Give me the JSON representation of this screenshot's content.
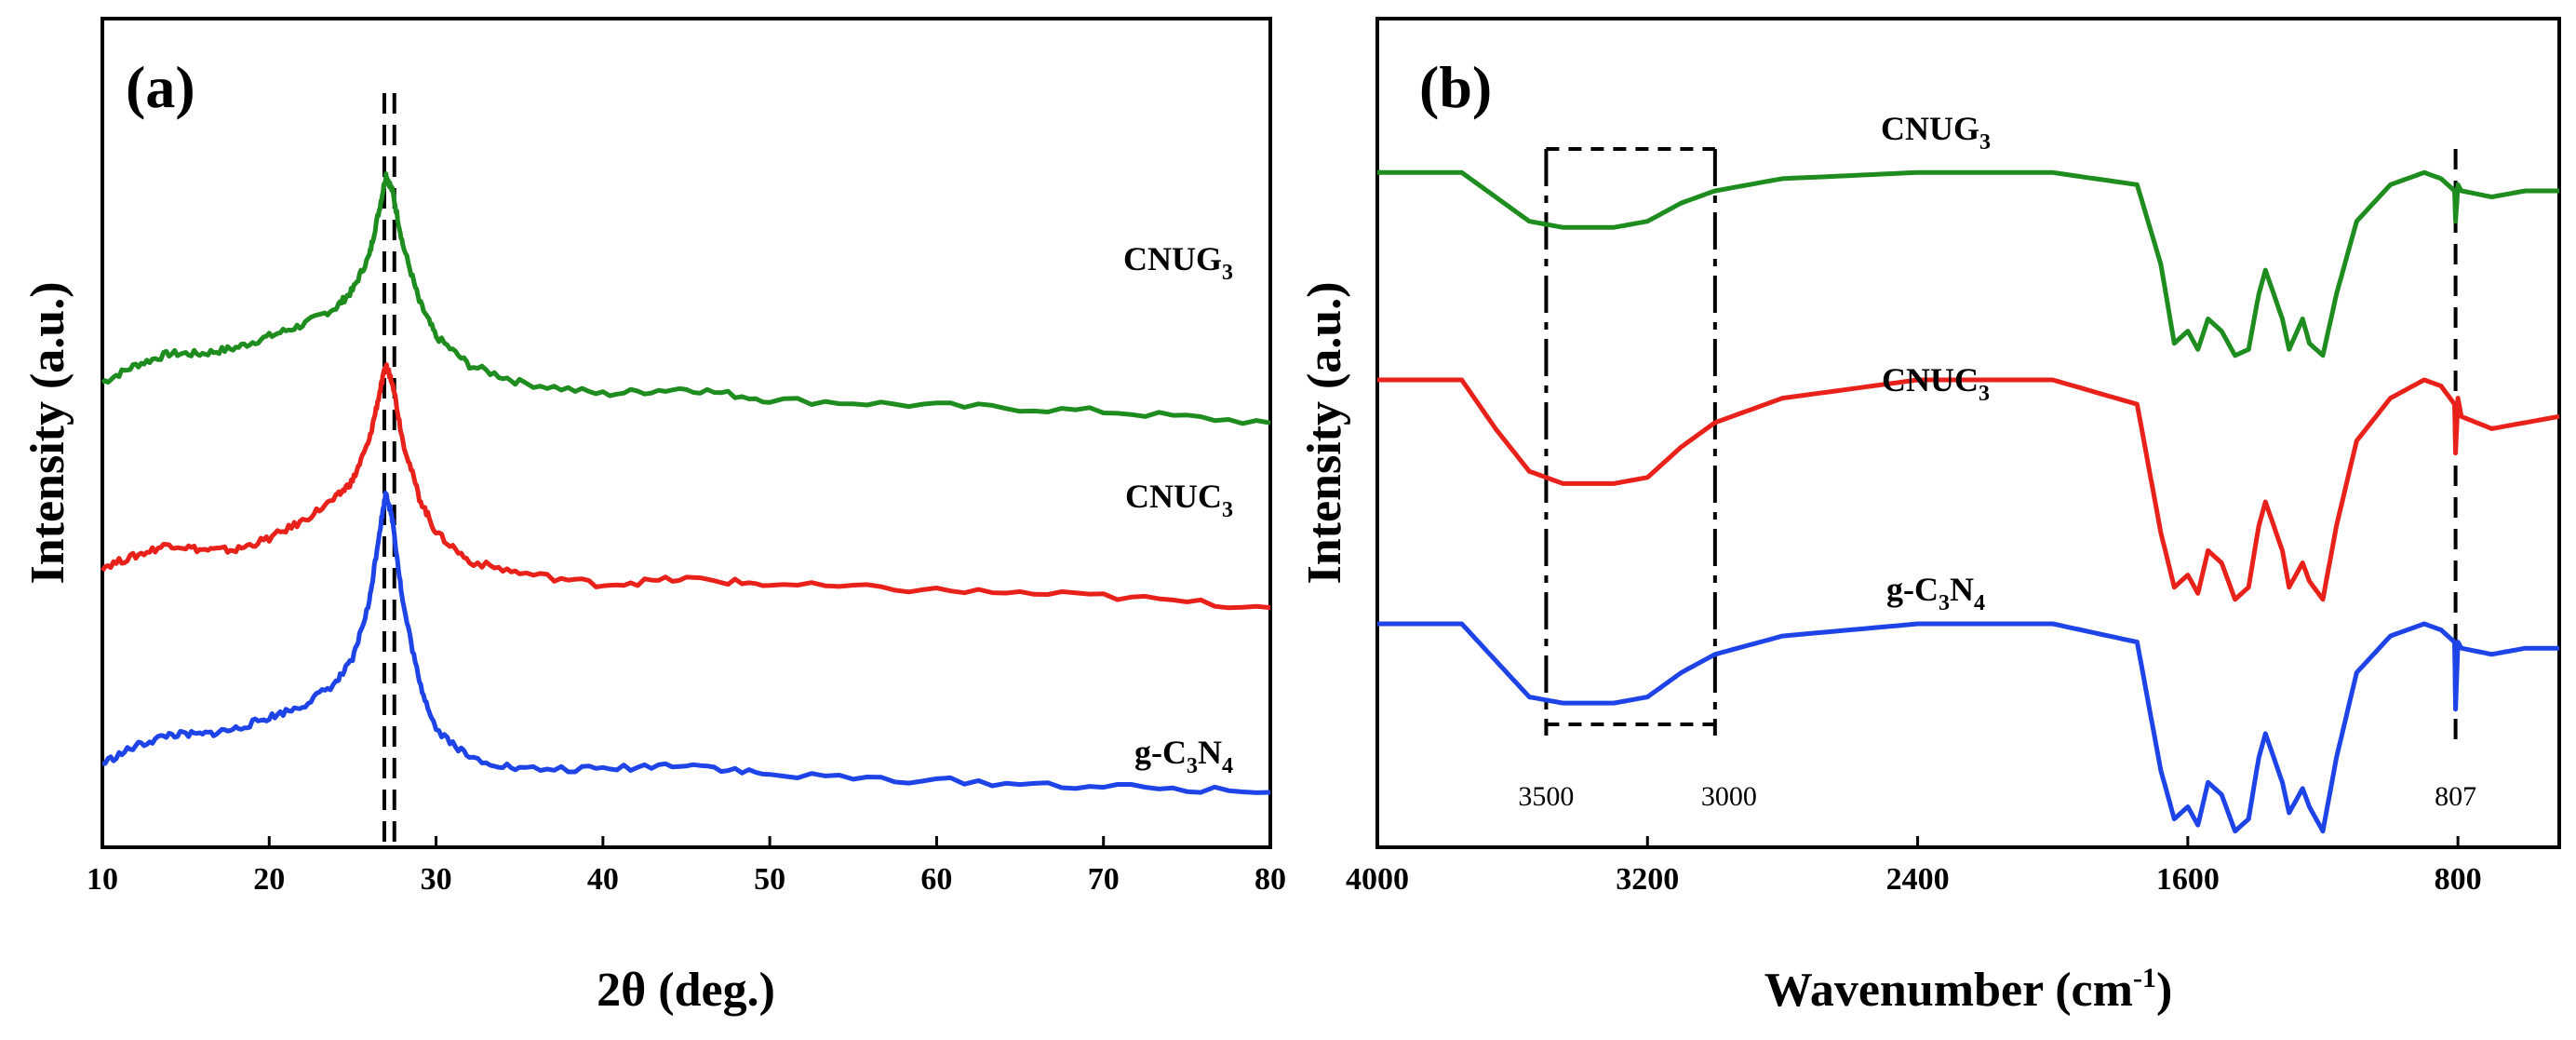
{
  "chart_data": [
    {
      "panel": "(a)",
      "type": "line",
      "xlabel": "2θ (deg.)",
      "ylabel": "Intensity (a.u.)",
      "xlim": [
        10,
        80
      ],
      "xticks": [
        10,
        20,
        30,
        40,
        50,
        60,
        70,
        80
      ],
      "yticks": [],
      "series_labels": [
        {
          "base": "CNUG",
          "sub": "3",
          "mid": "",
          "sub2": ""
        },
        {
          "base": "CNUC",
          "sub": "3",
          "mid": "",
          "sub2": ""
        },
        {
          "base": "g-C",
          "sub": "3",
          "mid": "N",
          "sub2": "4"
        }
      ],
      "series": [
        {
          "name": "CNUG3",
          "color": "#1e8c1e",
          "offset": 0.66,
          "x": [
            10,
            12,
            14,
            16,
            18,
            20,
            22,
            24,
            25,
            26,
            26.6,
            27,
            27.4,
            28,
            29,
            30,
            32,
            35,
            40,
            45,
            50,
            60,
            70,
            80
          ],
          "y": [
            0.0,
            0.03,
            0.05,
            0.05,
            0.06,
            0.08,
            0.1,
            0.13,
            0.16,
            0.22,
            0.3,
            0.36,
            0.33,
            0.24,
            0.14,
            0.08,
            0.03,
            0.0,
            -0.02,
            -0.01,
            -0.03,
            -0.04,
            -0.05,
            -0.07
          ]
        },
        {
          "name": "CNUC3",
          "color": "#e8221b",
          "offset": 0.34,
          "x": [
            10,
            12,
            14,
            16,
            18,
            20,
            22,
            24,
            25,
            26,
            26.6,
            27,
            27.4,
            28,
            29,
            30,
            32,
            35,
            40,
            45,
            50,
            60,
            70,
            80
          ],
          "y": [
            0.0,
            0.02,
            0.04,
            0.03,
            0.03,
            0.05,
            0.08,
            0.12,
            0.15,
            0.22,
            0.3,
            0.35,
            0.32,
            0.22,
            0.12,
            0.06,
            0.01,
            -0.01,
            -0.03,
            -0.02,
            -0.03,
            -0.04,
            -0.05,
            -0.07
          ]
        },
        {
          "name": "g-C3N4",
          "color": "#1e44e8",
          "offset": 0.0,
          "x": [
            10,
            12,
            14,
            16,
            18,
            20,
            22,
            24,
            25,
            26,
            26.6,
            27,
            27.4,
            28,
            29,
            30,
            32,
            35,
            40,
            45,
            50,
            60,
            70,
            80
          ],
          "y": [
            0.0,
            0.03,
            0.05,
            0.05,
            0.06,
            0.08,
            0.1,
            0.14,
            0.18,
            0.28,
            0.4,
            0.47,
            0.42,
            0.28,
            0.14,
            0.06,
            0.01,
            -0.01,
            -0.01,
            0.0,
            -0.02,
            -0.03,
            -0.04,
            -0.05
          ]
        }
      ],
      "guides": [
        26.9,
        27.5
      ]
    },
    {
      "panel": "(b)",
      "type": "line",
      "xlabel": "Wavenumber (cm",
      "xlabel_sup": "-1",
      "xlabel_end": ")",
      "ylabel": "Intensity (a.u.)",
      "xlim": [
        4000,
        500
      ],
      "xticks": [
        4000,
        3200,
        2400,
        1600,
        800
      ],
      "yticks": [],
      "series_labels": [
        {
          "base": "CNUG",
          "sub": "3",
          "mid": "",
          "sub2": ""
        },
        {
          "base": "CNUC",
          "sub": "3",
          "mid": "",
          "sub2": ""
        },
        {
          "base": "g-C",
          "sub": "3",
          "mid": "N",
          "sub2": "4"
        }
      ],
      "series": [
        {
          "name": "CNUG3",
          "color": "#1e8c1e",
          "offset": 0.74,
          "x": [
            4000,
            3750,
            3650,
            3550,
            3450,
            3300,
            3200,
            3100,
            3000,
            2800,
            2400,
            2000,
            1750,
            1680,
            1640,
            1600,
            1570,
            1540,
            1500,
            1460,
            1420,
            1390,
            1370,
            1320,
            1300,
            1260,
            1240,
            1200,
            1160,
            1100,
            1000,
            900,
            850,
            810,
            807,
            800,
            790,
            700,
            600,
            500
          ],
          "y": [
            0.0,
            0.0,
            -0.04,
            -0.08,
            -0.09,
            -0.09,
            -0.08,
            -0.05,
            -0.03,
            -0.01,
            0.0,
            0.0,
            -0.02,
            -0.15,
            -0.28,
            -0.26,
            -0.29,
            -0.24,
            -0.26,
            -0.3,
            -0.29,
            -0.2,
            -0.16,
            -0.24,
            -0.29,
            -0.24,
            -0.28,
            -0.3,
            -0.2,
            -0.08,
            -0.02,
            0.0,
            -0.01,
            -0.03,
            -0.08,
            -0.02,
            -0.03,
            -0.04,
            -0.03,
            -0.03
          ]
        },
        {
          "name": "CNUC3",
          "color": "#e8221b",
          "offset": 0.4,
          "x": [
            4000,
            3750,
            3650,
            3550,
            3450,
            3300,
            3200,
            3100,
            3000,
            2800,
            2400,
            2000,
            1750,
            1680,
            1640,
            1600,
            1570,
            1540,
            1500,
            1460,
            1420,
            1390,
            1370,
            1320,
            1300,
            1260,
            1240,
            1200,
            1160,
            1100,
            1000,
            900,
            850,
            810,
            807,
            800,
            790,
            700,
            600,
            500
          ],
          "y": [
            0.0,
            0.0,
            -0.08,
            -0.15,
            -0.17,
            -0.17,
            -0.16,
            -0.11,
            -0.07,
            -0.03,
            0.0,
            0.0,
            -0.04,
            -0.25,
            -0.34,
            -0.32,
            -0.35,
            -0.28,
            -0.3,
            -0.36,
            -0.34,
            -0.24,
            -0.2,
            -0.28,
            -0.34,
            -0.3,
            -0.33,
            -0.36,
            -0.24,
            -0.1,
            -0.03,
            0.0,
            -0.01,
            -0.04,
            -0.12,
            -0.03,
            -0.06,
            -0.08,
            -0.07,
            -0.06
          ]
        },
        {
          "name": "g-C3N4",
          "color": "#1e44e8",
          "offset": 0.0,
          "x": [
            4000,
            3750,
            3650,
            3550,
            3450,
            3300,
            3200,
            3100,
            3000,
            2800,
            2400,
            2000,
            1750,
            1680,
            1640,
            1600,
            1570,
            1540,
            1500,
            1460,
            1420,
            1390,
            1370,
            1320,
            1300,
            1260,
            1240,
            1200,
            1160,
            1100,
            1000,
            900,
            850,
            810,
            807,
            800,
            790,
            700,
            600,
            500
          ],
          "y": [
            0.0,
            0.0,
            -0.06,
            -0.12,
            -0.13,
            -0.13,
            -0.12,
            -0.08,
            -0.05,
            -0.02,
            0.0,
            0.0,
            -0.03,
            -0.24,
            -0.32,
            -0.3,
            -0.33,
            -0.26,
            -0.28,
            -0.34,
            -0.32,
            -0.22,
            -0.18,
            -0.26,
            -0.31,
            -0.27,
            -0.3,
            -0.34,
            -0.22,
            -0.08,
            -0.02,
            0.0,
            -0.01,
            -0.03,
            -0.14,
            -0.03,
            -0.04,
            -0.05,
            -0.04,
            -0.04
          ]
        }
      ],
      "guides": [
        3500,
        3000,
        807
      ],
      "annotations": [
        {
          "label": "3500",
          "x": 3500
        },
        {
          "label": "3000",
          "x": 3000
        },
        {
          "label": "807",
          "x": 807
        }
      ]
    }
  ]
}
